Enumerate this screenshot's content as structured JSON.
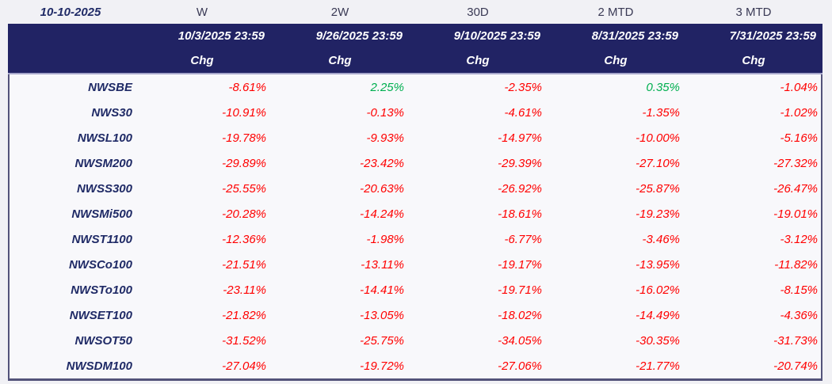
{
  "report_date": "10-10-2025",
  "columns": [
    {
      "period": "W",
      "date": "10/3/2025 23:59",
      "sub": "Chg"
    },
    {
      "period": "2W",
      "date": "9/26/2025 23:59",
      "sub": "Chg"
    },
    {
      "period": "30D",
      "date": "9/10/2025 23:59",
      "sub": "Chg"
    },
    {
      "period": "2 MTD",
      "date": "8/31/2025 23:59",
      "sub": "Chg"
    },
    {
      "period": "3 MTD",
      "date": "7/31/2025 23:59",
      "sub": "Chg"
    }
  ],
  "rows": [
    {
      "name": "NWSBE",
      "values": [
        "-8.61%",
        "2.25%",
        "-2.35%",
        "0.35%",
        "-1.04%"
      ]
    },
    {
      "name": "NWS30",
      "values": [
        "-10.91%",
        "-0.13%",
        "-4.61%",
        "-1.35%",
        "-1.02%"
      ]
    },
    {
      "name": "NWSL100",
      "values": [
        "-19.78%",
        "-9.93%",
        "-14.97%",
        "-10.00%",
        "-5.16%"
      ]
    },
    {
      "name": "NWSM200",
      "values": [
        "-29.89%",
        "-23.42%",
        "-29.39%",
        "-27.10%",
        "-27.32%"
      ]
    },
    {
      "name": "NWSS300",
      "values": [
        "-25.55%",
        "-20.63%",
        "-26.92%",
        "-25.87%",
        "-26.47%"
      ]
    },
    {
      "name": "NWSMi500",
      "values": [
        "-20.28%",
        "-14.24%",
        "-18.61%",
        "-19.23%",
        "-19.01%"
      ]
    },
    {
      "name": "NWST1100",
      "values": [
        "-12.36%",
        "-1.98%",
        "-6.77%",
        "-3.46%",
        "-3.12%"
      ]
    },
    {
      "name": "NWSCo100",
      "values": [
        "-21.51%",
        "-13.11%",
        "-19.17%",
        "-13.95%",
        "-11.82%"
      ]
    },
    {
      "name": "NWSTo100",
      "values": [
        "-23.11%",
        "-14.41%",
        "-19.71%",
        "-16.02%",
        "-8.15%"
      ]
    },
    {
      "name": "NWSET100",
      "values": [
        "-21.82%",
        "-13.05%",
        "-18.02%",
        "-14.49%",
        "-4.36%"
      ]
    },
    {
      "name": "NWSOT50",
      "values": [
        "-31.52%",
        "-25.75%",
        "-34.05%",
        "-30.35%",
        "-31.73%"
      ]
    },
    {
      "name": "NWSDM100",
      "values": [
        "-27.04%",
        "-19.72%",
        "-27.06%",
        "-21.77%",
        "-20.74%"
      ]
    }
  ],
  "colors": {
    "page_bg": "#F1F1F5",
    "band_bg": "#212364",
    "band_separator": "#A6A6CB",
    "body_bg": "#F8F8FB",
    "body_border": "#53537A",
    "label_color": "#1F2A66",
    "period_color": "#3A3A55",
    "negative": "#FF0000",
    "positive": "#00AF50",
    "header_text": "#FFFFFF"
  }
}
